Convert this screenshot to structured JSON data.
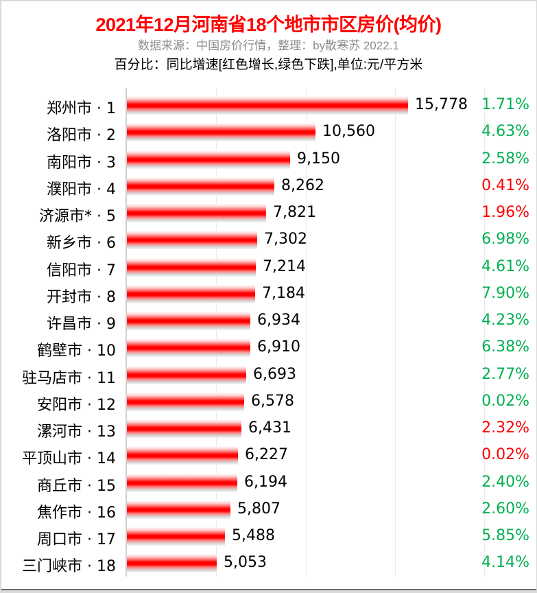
{
  "header": {
    "title": "2021年12月河南省18个地市市区房价(均价)",
    "subtitle": "数据来源：中国房价行情，整理：by散寒苏 2022.1",
    "note": "百分比：同比增速[红色增长,绿色下跌],单位:元/平方米"
  },
  "colors": {
    "title": "#ff0000",
    "bar": "#ff0000",
    "increase": "#ff0000",
    "decrease": "#00b050",
    "subtitle": "#8c8c8c",
    "grid": "#ebebeb"
  },
  "rows": [
    {
      "label": "郑州市 · 1",
      "value": "15,778",
      "pct": "1.71%",
      "trend": "down"
    },
    {
      "label": "洛阳市 · 2",
      "value": "10,560",
      "pct": "4.63%",
      "trend": "down"
    },
    {
      "label": "南阳市 · 3",
      "value": "9,150",
      "pct": "2.58%",
      "trend": "down"
    },
    {
      "label": "濮阳市 · 4",
      "value": "8,262",
      "pct": "0.41%",
      "trend": "up"
    },
    {
      "label": "济源市* · 5",
      "value": "7,821",
      "pct": "1.96%",
      "trend": "up"
    },
    {
      "label": "新乡市 · 6",
      "value": "7,302",
      "pct": "6.98%",
      "trend": "down"
    },
    {
      "label": "信阳市 · 7",
      "value": "7,214",
      "pct": "4.61%",
      "trend": "down"
    },
    {
      "label": "开封市 · 8",
      "value": "7,184",
      "pct": "7.90%",
      "trend": "down"
    },
    {
      "label": "许昌市 · 9",
      "value": "6,934",
      "pct": "4.23%",
      "trend": "down"
    },
    {
      "label": "鹤壁市 · 10",
      "value": "6,910",
      "pct": "6.38%",
      "trend": "down"
    },
    {
      "label": "驻马店市 · 11",
      "value": "6,693",
      "pct": "2.77%",
      "trend": "down"
    },
    {
      "label": "安阳市 · 12",
      "value": "6,578",
      "pct": "0.02%",
      "trend": "down"
    },
    {
      "label": "漯河市 · 13",
      "value": "6,431",
      "pct": "2.32%",
      "trend": "up"
    },
    {
      "label": "平顶山市 · 14",
      "value": "6,227",
      "pct": "0.02%",
      "trend": "up"
    },
    {
      "label": "商丘市 · 15",
      "value": "6,194",
      "pct": "2.40%",
      "trend": "down"
    },
    {
      "label": "焦作市 · 16",
      "value": "5,807",
      "pct": "2.60%",
      "trend": "down"
    },
    {
      "label": "周口市 · 17",
      "value": "5,488",
      "pct": "5.85%",
      "trend": "down"
    },
    {
      "label": "三门峡市 · 18",
      "value": "5,053",
      "pct": "4.14%",
      "trend": "down"
    }
  ],
  "chart_data": {
    "type": "bar",
    "orientation": "horizontal",
    "title": "2021年12月河南省18个地市市区房价(均价)",
    "subtitle": "数据来源：中国房价行情，整理：by散寒苏 2022.1",
    "annotation": "百分比：同比增速[红色增长,绿色下跌],单位:元/平方米",
    "xlabel": "",
    "ylabel": "",
    "xlim": [
      0,
      20000
    ],
    "grid": true,
    "grid_step": 5000,
    "legend": null,
    "categories": [
      "郑州市 · 1",
      "洛阳市 · 2",
      "南阳市 · 3",
      "濮阳市 · 4",
      "济源市* · 5",
      "新乡市 · 6",
      "信阳市 · 7",
      "开封市 · 8",
      "许昌市 · 9",
      "鹤壁市 · 10",
      "驻马店市 · 11",
      "安阳市 · 12",
      "漯河市 · 13",
      "平顶山市 · 14",
      "商丘市 · 15",
      "焦作市 · 16",
      "周口市 · 17",
      "三门峡市 · 18"
    ],
    "series": [
      {
        "name": "均价(元/平方米)",
        "values": [
          15778,
          10560,
          9150,
          8262,
          7821,
          7302,
          7214,
          7184,
          6934,
          6910,
          6693,
          6578,
          6431,
          6227,
          6194,
          5807,
          5488,
          5053
        ]
      },
      {
        "name": "同比增速(%)",
        "values": [
          1.71,
          4.63,
          2.58,
          0.41,
          1.96,
          6.98,
          4.61,
          7.9,
          4.23,
          6.38,
          2.77,
          0.02,
          2.32,
          0.02,
          2.4,
          2.6,
          5.85,
          4.14
        ],
        "colors": [
          "green",
          "green",
          "green",
          "red",
          "red",
          "green",
          "green",
          "green",
          "green",
          "green",
          "green",
          "green",
          "red",
          "red",
          "green",
          "green",
          "green",
          "green"
        ]
      }
    ]
  }
}
